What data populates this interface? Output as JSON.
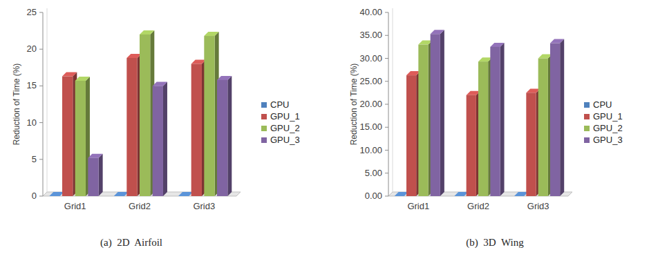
{
  "chart_data": [
    {
      "type": "bar",
      "title": "(a)  2D  Airfoil",
      "y_label": "Reduction of Time (%)",
      "categories": [
        "Grid1",
        "Grid2",
        "Grid3"
      ],
      "series": [
        {
          "name": "CPU",
          "color": "#4f81bd",
          "values": [
            0,
            0,
            0
          ]
        },
        {
          "name": "GPU_1",
          "color": "#c0504d",
          "values": [
            16.3,
            18.8,
            18.0
          ]
        },
        {
          "name": "GPU_2",
          "color": "#9bbb59",
          "values": [
            15.7,
            22.0,
            21.8
          ]
        },
        {
          "name": "GPU_3",
          "color": "#8064a2",
          "values": [
            5.2,
            15.0,
            15.8
          ]
        }
      ],
      "ylim": [
        0,
        25
      ],
      "yticks": [
        0,
        5,
        10,
        15,
        20,
        25
      ],
      "grid": false,
      "legend": "right"
    },
    {
      "type": "bar",
      "title": "(b)  3D  Wing",
      "y_label": "Reduction of Time (%)",
      "categories": [
        "Grid1",
        "Grid2",
        "Grid3"
      ],
      "series": [
        {
          "name": "CPU",
          "color": "#4f81bd",
          "values": [
            0,
            0,
            0
          ]
        },
        {
          "name": "GPU_1",
          "color": "#c0504d",
          "values": [
            26.3,
            22.0,
            22.5
          ]
        },
        {
          "name": "GPU_2",
          "color": "#9bbb59",
          "values": [
            33.0,
            29.3,
            30.0
          ]
        },
        {
          "name": "GPU_3",
          "color": "#8064a2",
          "values": [
            35.3,
            32.5,
            33.3
          ]
        }
      ],
      "ylim": [
        0,
        40
      ],
      "yticks": [
        {
          "value": 0,
          "label": "0.00"
        },
        {
          "value": 5,
          "label": "5.00"
        },
        {
          "value": 10,
          "label": "10.00"
        },
        {
          "value": 15,
          "label": "15.00"
        },
        {
          "value": 20,
          "label": "20.00"
        },
        {
          "value": 25,
          "label": "25.00"
        },
        {
          "value": 30,
          "label": "30.00"
        },
        {
          "value": 35,
          "label": "35.00"
        },
        {
          "value": 40,
          "label": "40.00"
        }
      ],
      "grid": false,
      "legend": "right"
    }
  ]
}
